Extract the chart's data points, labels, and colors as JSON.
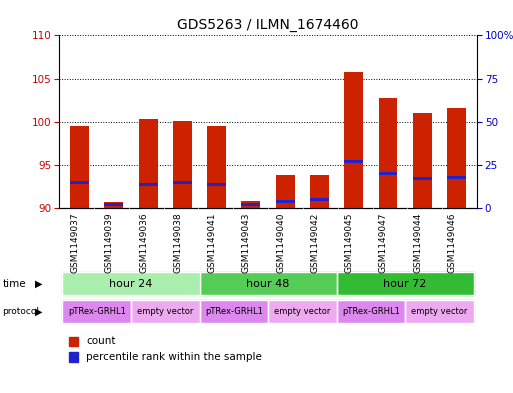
{
  "title": "GDS5263 / ILMN_1674460",
  "samples": [
    "GSM1149037",
    "GSM1149039",
    "GSM1149036",
    "GSM1149038",
    "GSM1149041",
    "GSM1149043",
    "GSM1149040",
    "GSM1149042",
    "GSM1149045",
    "GSM1149047",
    "GSM1149044",
    "GSM1149046"
  ],
  "count_values": [
    99.5,
    90.7,
    100.3,
    100.1,
    99.5,
    90.8,
    93.9,
    93.8,
    105.8,
    102.7,
    101.0,
    101.6
  ],
  "percentile_values": [
    15,
    2,
    14,
    15,
    14,
    2,
    4,
    5,
    27,
    20,
    17,
    18
  ],
  "ylim_left": [
    90,
    110
  ],
  "ylim_right": [
    0,
    100
  ],
  "yticks_left": [
    90,
    95,
    100,
    105,
    110
  ],
  "yticks_right": [
    0,
    25,
    50,
    75,
    100
  ],
  "bar_color": "#CC2200",
  "marker_color": "#2222CC",
  "bar_width": 0.55,
  "time_groups": [
    {
      "label": "hour 24",
      "indices": [
        0,
        1,
        2,
        3
      ],
      "color": "#AAEEAD"
    },
    {
      "label": "hour 48",
      "indices": [
        4,
        5,
        6,
        7
      ],
      "color": "#55CC55"
    },
    {
      "label": "hour 72",
      "indices": [
        8,
        9,
        10,
        11
      ],
      "color": "#33BB33"
    }
  ],
  "protocol_groups": [
    {
      "label": "pTRex-GRHL1",
      "indices": [
        0,
        1
      ],
      "color": "#DD88EE"
    },
    {
      "label": "empty vector",
      "indices": [
        2,
        3
      ],
      "color": "#EEAAEE"
    },
    {
      "label": "pTRex-GRHL1",
      "indices": [
        4,
        5
      ],
      "color": "#DD88EE"
    },
    {
      "label": "empty vector",
      "indices": [
        6,
        7
      ],
      "color": "#EEAAEE"
    },
    {
      "label": "pTRex-GRHL1",
      "indices": [
        8,
        9
      ],
      "color": "#DD88EE"
    },
    {
      "label": "empty vector",
      "indices": [
        10,
        11
      ],
      "color": "#EEAAEE"
    }
  ],
  "bg_color": "#FFFFFF",
  "left_tick_color": "#CC0000",
  "right_tick_color": "#0000CC",
  "legend_items": [
    {
      "label": "count",
      "color": "#CC2200"
    },
    {
      "label": "percentile rank within the sample",
      "color": "#2222CC"
    }
  ]
}
